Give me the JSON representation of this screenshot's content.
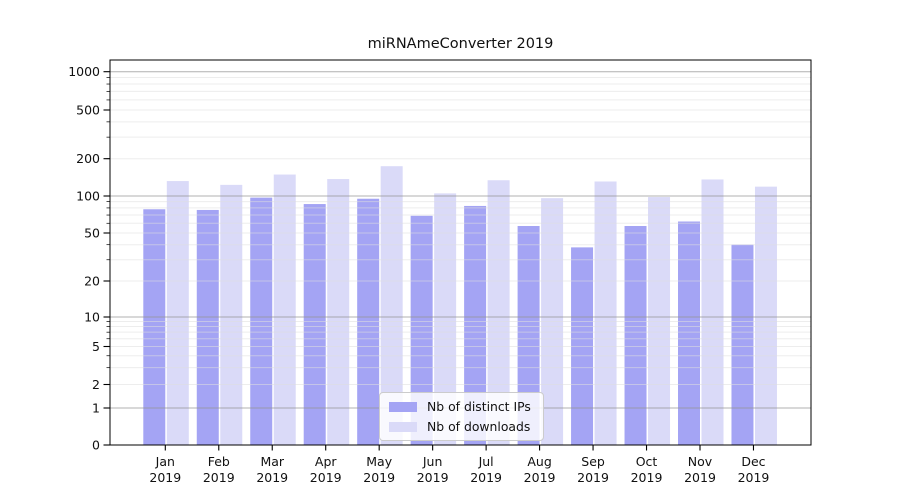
{
  "title": "miRNAmeConverter 2019",
  "chart_data": {
    "type": "bar",
    "title": "miRNAmeConverter 2019",
    "categories": [
      "Jan",
      "Feb",
      "Mar",
      "Apr",
      "May",
      "Jun",
      "Jul",
      "Aug",
      "Sep",
      "Oct",
      "Nov",
      "Dec"
    ],
    "year": "2019",
    "series": [
      {
        "name": "Nb of distinct IPs",
        "color": "#a4a4f4",
        "values": [
          78,
          77,
          97,
          86,
          95,
          69,
          83,
          57,
          38,
          57,
          62,
          40
        ]
      },
      {
        "name": "Nb of downloads",
        "color": "#dadaf8",
        "values": [
          132,
          123,
          149,
          137,
          174,
          105,
          134,
          96,
          131,
          98,
          136,
          119
        ]
      }
    ],
    "xlabel": "",
    "ylabel": "",
    "yscale": "symlog",
    "yticks": [
      0,
      1,
      2,
      5,
      10,
      20,
      50,
      100,
      200,
      500,
      1000
    ],
    "ylim": [
      0,
      1250
    ],
    "grid": true,
    "grid_minor": true,
    "legend_position": "lower-center",
    "colors": {
      "major_grid": "#969696",
      "minor_grid": "#dedede",
      "axis": "#000000"
    }
  }
}
